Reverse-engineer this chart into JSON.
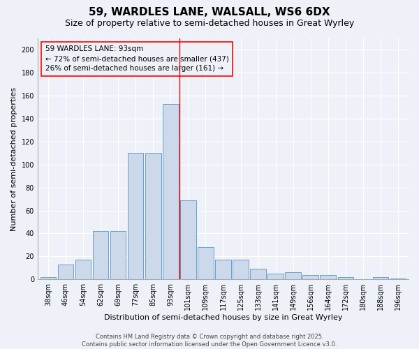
{
  "title": "59, WARDLES LANE, WALSALL, WS6 6DX",
  "subtitle": "Size of property relative to semi-detached houses in Great Wyrley",
  "xlabel": "Distribution of semi-detached houses by size in Great Wyrley",
  "ylabel": "Number of semi-detached properties",
  "bar_color": "#ccd9ea",
  "bar_edge_color": "#6a9fcb",
  "bin_labels": [
    "38sqm",
    "46sqm",
    "54sqm",
    "62sqm",
    "69sqm",
    "77sqm",
    "85sqm",
    "93sqm",
    "101sqm",
    "109sqm",
    "117sqm",
    "125sqm",
    "133sqm",
    "141sqm",
    "149sqm",
    "156sqm",
    "164sqm",
    "172sqm",
    "180sqm",
    "188sqm",
    "196sqm"
  ],
  "values": [
    2,
    13,
    17,
    42,
    42,
    110,
    110,
    153,
    69,
    28,
    17,
    17,
    9,
    5,
    6,
    4,
    4,
    2,
    0,
    2,
    1
  ],
  "property_line_bin_index": 7,
  "annotation_line1": "59 WARDLES LANE: 93sqm",
  "annotation_line2": "← 72% of semi-detached houses are smaller (437)",
  "annotation_line3": "26% of semi-detached houses are larger (161) →",
  "ylim": [
    0,
    210
  ],
  "yticks": [
    0,
    20,
    40,
    60,
    80,
    100,
    120,
    140,
    160,
    180,
    200
  ],
  "footer": "Contains HM Land Registry data © Crown copyright and database right 2025.\nContains public sector information licensed under the Open Government Licence v3.0.",
  "background_color": "#eef2f8",
  "grid_color": "#ffffff",
  "title_fontsize": 11,
  "subtitle_fontsize": 9,
  "axis_label_fontsize": 8,
  "tick_fontsize": 7,
  "annotation_fontsize": 7.5,
  "footer_fontsize": 6
}
